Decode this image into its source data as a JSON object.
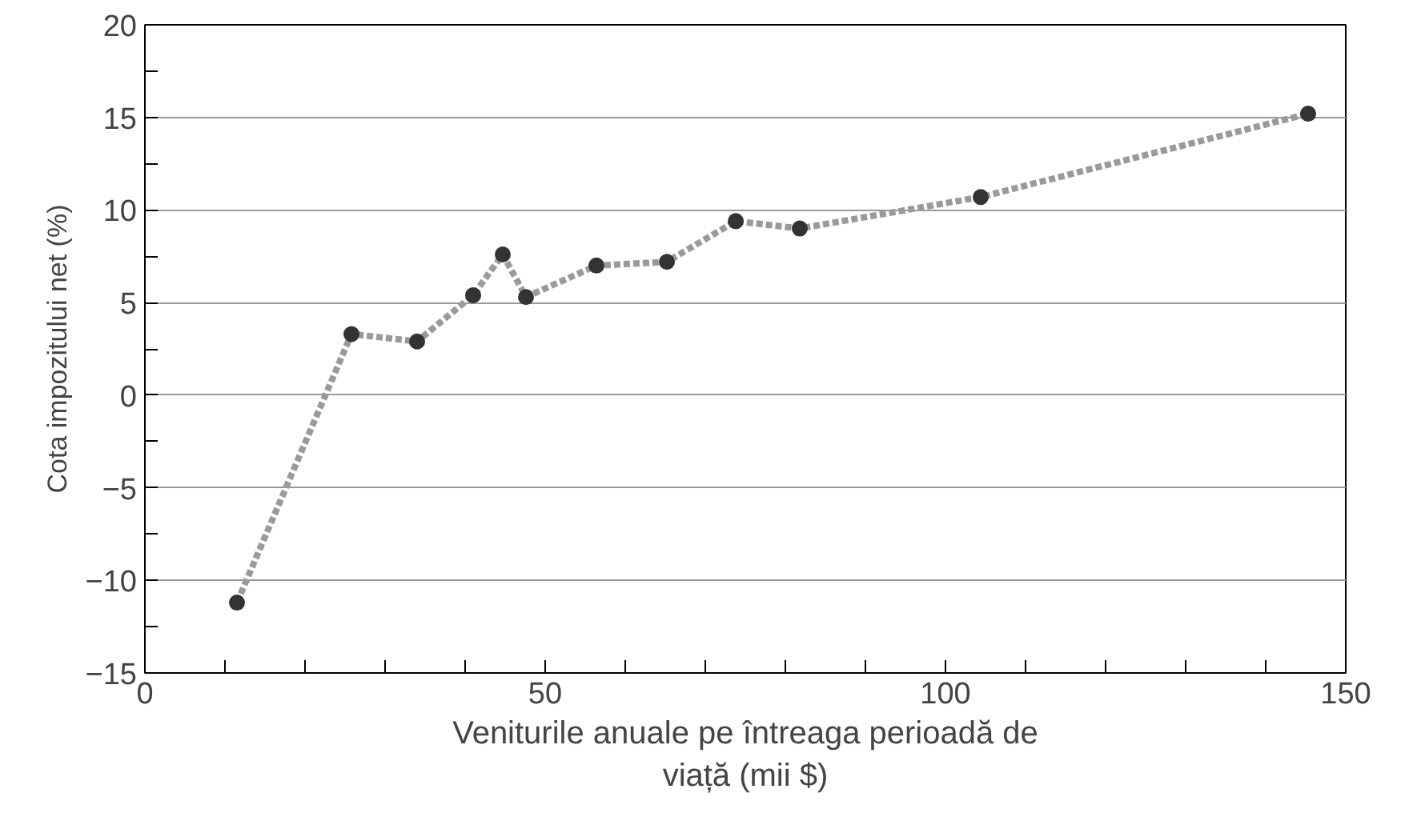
{
  "chart_data": {
    "type": "line",
    "xlabel": "Veniturile anuale pe întreaga perioadă de\nviață (mii $)",
    "ylabel": "Cota impozitului net (%)",
    "x": [
      11.5,
      25.8,
      34,
      41,
      44.7,
      47.6,
      56.4,
      65.2,
      73.8,
      81.8,
      104.4,
      145.3
    ],
    "series": [
      {
        "color": "#9a9a9a",
        "values": [
          -11.2,
          3.3,
          2.9,
          5.4,
          7.6,
          5.3,
          7.0,
          7.2,
          9.4,
          9.0,
          10.7,
          15.2
        ]
      }
    ],
    "marker": "circle",
    "line_style": "dashed",
    "grid": "y",
    "xlim": [
      0,
      150
    ],
    "ylim": [
      -15,
      20
    ],
    "xticks": [
      0,
      {
        "value": 10,
        "label": null
      },
      {
        "value": 20,
        "label": null
      },
      {
        "value": 30,
        "label": null
      },
      {
        "value": 40,
        "label": null
      },
      50,
      {
        "value": 60,
        "label": null
      },
      {
        "value": 70,
        "label": null
      },
      {
        "value": 80,
        "label": null
      },
      {
        "value": 90,
        "label": null
      },
      100,
      {
        "value": 110,
        "label": null
      },
      {
        "value": 120,
        "label": null
      },
      {
        "value": 130,
        "label": null
      },
      {
        "value": 140,
        "label": null
      },
      150
    ],
    "yticks": [
      -15,
      {
        "value": -12.5,
        "label": null
      },
      -10,
      {
        "value": -7.5,
        "label": null
      },
      -5,
      {
        "value": -2.5,
        "label": null
      },
      0,
      {
        "value": 2.5,
        "label": null
      },
      5,
      {
        "value": 7.5,
        "label": null
      },
      10,
      {
        "value": 12.5,
        "label": null
      },
      15,
      {
        "value": 17.5,
        "label": null
      },
      20
    ]
  }
}
